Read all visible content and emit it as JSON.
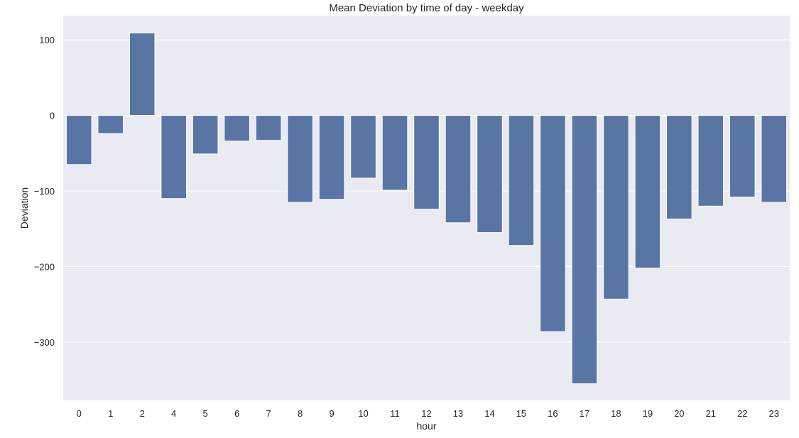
{
  "chart_data": {
    "type": "bar",
    "title": "Mean Deviation by time of day - weekday",
    "xlabel": "hour",
    "ylabel": "Deviation",
    "categories": [
      "0",
      "1",
      "2",
      "4",
      "5",
      "6",
      "7",
      "8",
      "9",
      "10",
      "11",
      "12",
      "13",
      "14",
      "15",
      "16",
      "17",
      "18",
      "19",
      "20",
      "21",
      "22",
      "23"
    ],
    "values": [
      -65,
      -24,
      109,
      -110,
      -51,
      -34,
      -33,
      -115,
      -111,
      -83,
      -99,
      -124,
      -142,
      -155,
      -172,
      -286,
      -355,
      -243,
      -202,
      -137,
      -120,
      -108,
      -115
    ],
    "ylim": [
      -377,
      132
    ],
    "yticks": [
      100,
      0,
      -100,
      -200,
      -300
    ],
    "ytick_labels": [
      "100",
      "0",
      "−100",
      "−200",
      "−300"
    ],
    "grid": true,
    "colors": {
      "bar": "#5875a4",
      "plot_bg": "#eaeaf2",
      "grid": "#ffffff",
      "text": "#262626"
    }
  }
}
